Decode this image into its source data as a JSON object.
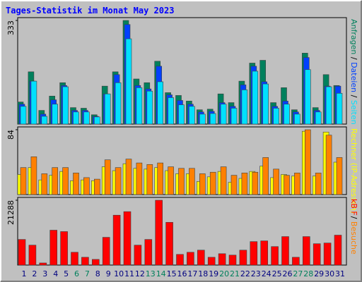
{
  "chart_data": [
    {
      "type": "bar",
      "title": "Tages-Statistik im Monat May 2023",
      "ylim": [
        0,
        333
      ],
      "yticks": [
        333
      ],
      "series": [
        {
          "name": "Anfragen",
          "color": "#00805c",
          "values": [
            71,
            168,
            44,
            90,
            133,
            53,
            51,
            30,
            122,
            168,
            333,
            145,
            133,
            202,
            101,
            92,
            74,
            46,
            48,
            97,
            69,
            138,
            196,
            205,
            69,
            117,
            46,
            228,
            53,
            159,
            124
          ]
        },
        {
          "name": "Dateien",
          "color": "#0040ff",
          "values": [
            64,
            138,
            32,
            78,
            124,
            44,
            44,
            25,
            97,
            159,
            320,
            124,
            113,
            186,
            94,
            76,
            64,
            39,
            41,
            69,
            57,
            126,
            186,
            136,
            57,
            74,
            39,
            214,
            44,
            122,
            122
          ]
        },
        {
          "name": "Seiten",
          "color": "#00e0ff",
          "values": [
            57,
            138,
            25,
            64,
            120,
            39,
            39,
            23,
            97,
            133,
            274,
            117,
            106,
            136,
            85,
            62,
            57,
            32,
            34,
            64,
            51,
            110,
            170,
            129,
            51,
            64,
            32,
            175,
            39,
            120,
            99
          ]
        }
      ]
    },
    {
      "type": "bar",
      "ylim": [
        0,
        84
      ],
      "yticks": [
        84
      ],
      "series": [
        {
          "name": "Rechner (IP-Adressen)",
          "color": "#ffff00",
          "values": [
            26,
            35,
            19,
            25,
            30,
            18,
            19,
            18,
            36,
            31,
            40,
            34,
            33,
            35,
            31,
            27,
            27,
            17,
            23,
            30,
            16,
            21,
            30,
            37,
            22,
            26,
            24,
            82,
            24,
            81,
            42
          ]
        },
        {
          "name": "Besuche",
          "color": "#ff8000",
          "values": [
            35,
            49,
            27,
            35,
            35,
            28,
            22,
            20,
            45,
            35,
            46,
            41,
            39,
            41,
            36,
            34,
            34,
            27,
            29,
            36,
            25,
            28,
            29,
            48,
            33,
            25,
            28,
            84,
            28,
            77,
            48
          ]
        }
      ]
    },
    {
      "type": "bar",
      "ylim": [
        0,
        21288
      ],
      "yticks": [
        21288
      ],
      "categories": [
        "1",
        "2",
        "3",
        "4",
        "5",
        "6",
        "7",
        "8",
        "9",
        "10",
        "11",
        "12",
        "13",
        "14",
        "15",
        "16",
        "17",
        "18",
        "19",
        "20",
        "21",
        "22",
        "23",
        "24",
        "25",
        "26",
        "27",
        "28",
        "29",
        "30",
        "31"
      ],
      "category_colors": [
        "#000080",
        "#000080",
        "#000080",
        "#000080",
        "#000080",
        "#00805c",
        "#00805c",
        "#000080",
        "#000080",
        "#000080",
        "#000080",
        "#000080",
        "#00805c",
        "#00805c",
        "#000080",
        "#000080",
        "#000080",
        "#000080",
        "#000080",
        "#00805c",
        "#00805c",
        "#000080",
        "#000080",
        "#000080",
        "#000080",
        "#000080",
        "#00805c",
        "#00805c",
        "#000080",
        "#000080",
        "#000080"
      ],
      "series": [
        {
          "name": "kB F",
          "color": "#ff0000",
          "values": [
            8420,
            6550,
            700,
            11460,
            11000,
            4210,
            2570,
            1870,
            9120,
            16380,
            17550,
            6550,
            8420,
            21288,
            14040,
            3510,
            4210,
            4910,
            2570,
            3740,
            3280,
            4910,
            7720,
            7950,
            6080,
            9360,
            2570,
            9360,
            7020,
            7250,
            9830
          ]
        }
      ]
    }
  ]
}
